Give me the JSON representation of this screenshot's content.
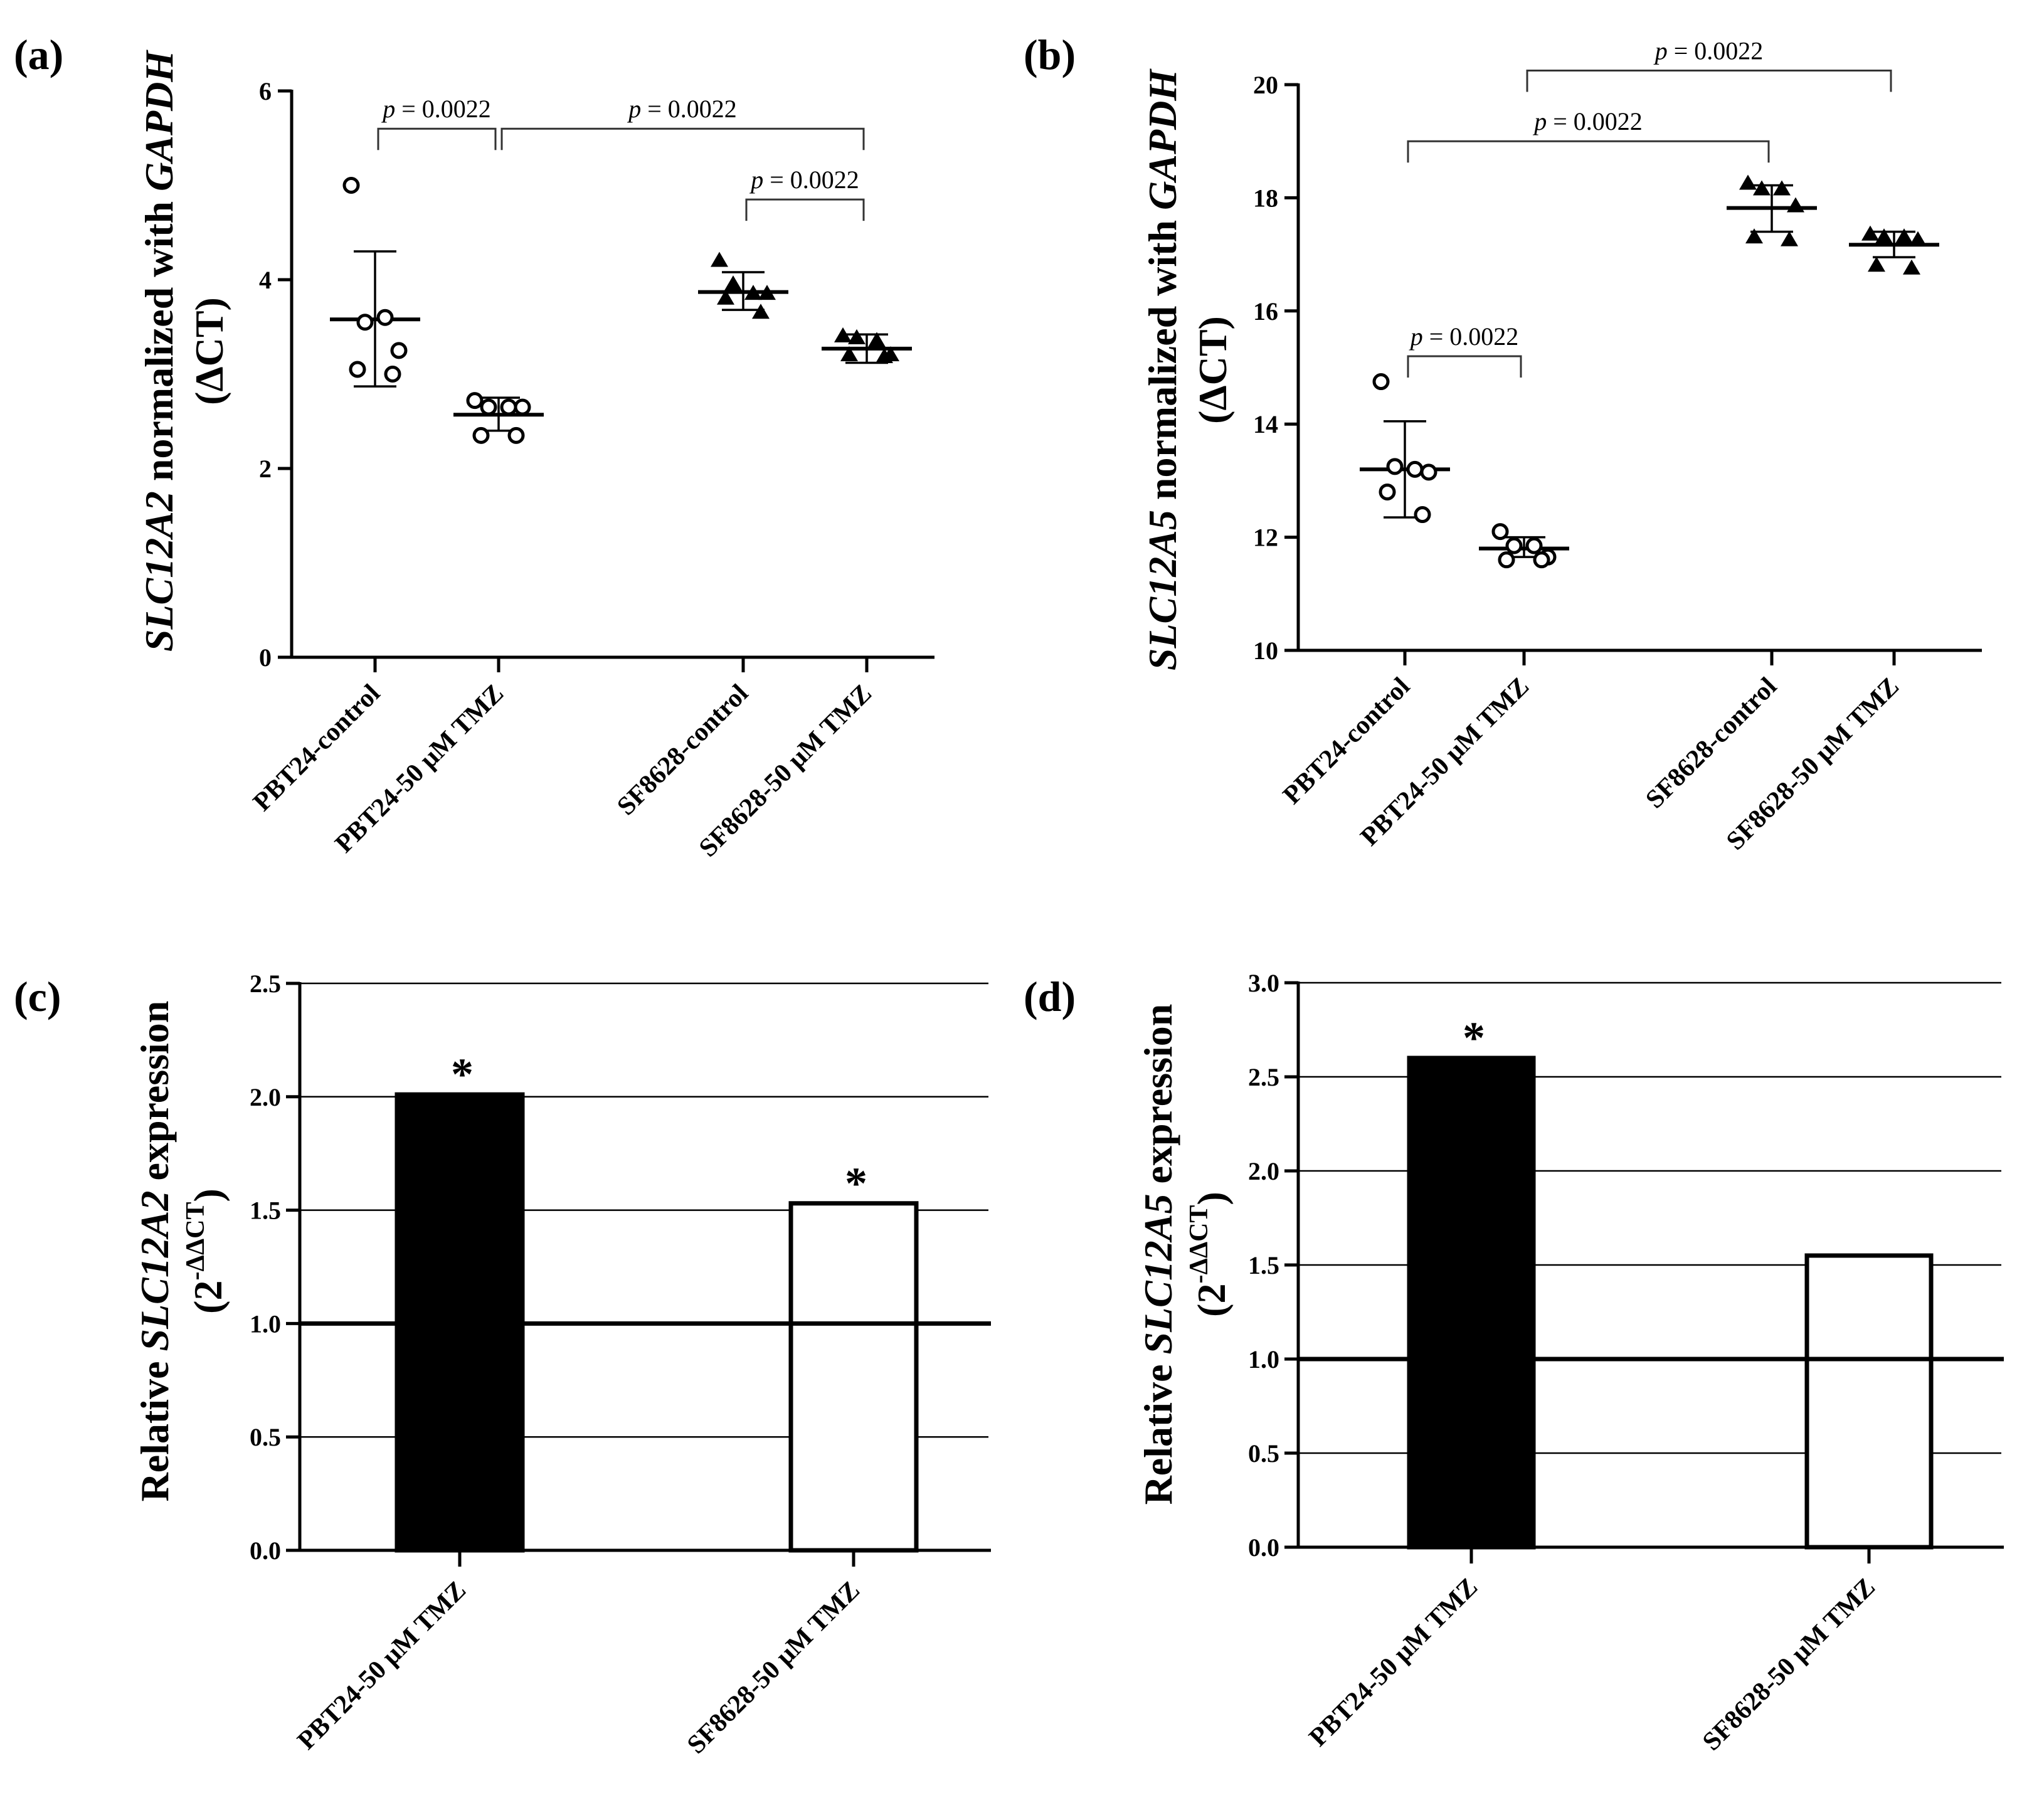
{
  "panels": [
    {
      "id": "a",
      "label": "(a)",
      "ylabel_gene": "SLC12A2",
      "ylabel_rest": " normalized with ",
      "ylabel_norm": "GAPDH",
      "ylabel_line2": "(ΔCT)"
    },
    {
      "id": "b",
      "label": "(b)",
      "ylabel_gene": "SLC12A5",
      "ylabel_rest": " normalized with ",
      "ylabel_norm": "GAPDH",
      "ylabel_line2": "(ΔCT)"
    },
    {
      "id": "c",
      "label": "(c)",
      "ylabel_pre": "Relative ",
      "ylabel_gene": "SLC12A2",
      "ylabel_post": " expression",
      "ylabel_line2_base": "(2",
      "ylabel_line2_sup": "-ΔΔCT",
      "ylabel_line2_end": ")"
    },
    {
      "id": "d",
      "label": "(d)",
      "ylabel_pre": "Relative ",
      "ylabel_gene": "SLC12A5",
      "ylabel_post": " expression",
      "ylabel_line2_base": "(2",
      "ylabel_line2_sup": "-ΔΔCT",
      "ylabel_line2_end": ")"
    }
  ],
  "chart_data": [
    {
      "panel": "a",
      "type": "scatter",
      "ylabel": "SLC12A2 normalized with GAPDH (ΔCT)",
      "ylim": [
        0,
        6
      ],
      "yticks": [
        0,
        2,
        4,
        6
      ],
      "categories": [
        "PBT24-control",
        "PBT24-50 μM TMZ",
        "SF8628-control",
        "SF8628-50 μM TMZ"
      ],
      "series": [
        {
          "name": "PBT24-control",
          "marker": "open-circle",
          "points": [
            5.0,
            3.55,
            3.6,
            3.25,
            3.05,
            3.0
          ],
          "mean": 3.58,
          "sd_low": 2.87,
          "sd_high": 4.3
        },
        {
          "name": "PBT24-50 μM TMZ",
          "marker": "open-circle",
          "points": [
            2.72,
            2.65,
            2.65,
            2.65,
            2.35,
            2.35
          ],
          "mean": 2.57,
          "sd_low": 2.4,
          "sd_high": 2.75
        },
        {
          "name": "SF8628-control",
          "marker": "filled-triangle",
          "points": [
            4.2,
            3.95,
            3.85,
            3.85,
            3.8,
            3.65
          ],
          "mean": 3.87,
          "sd_low": 3.68,
          "sd_high": 4.08
        },
        {
          "name": "SF8628-50 μM TMZ",
          "marker": "filled-triangle",
          "points": [
            3.4,
            3.38,
            3.35,
            3.2,
            3.2,
            3.18
          ],
          "mean": 3.27,
          "sd_low": 3.12,
          "sd_high": 3.42
        }
      ],
      "comparisons": [
        {
          "from": 0,
          "to": 1,
          "level": 5.6,
          "text": "p = 0.0022"
        },
        {
          "from": 1,
          "to": 3,
          "level": 5.6,
          "text": "p = 0.0022"
        },
        {
          "from": 2,
          "to": 3,
          "level": 4.85,
          "text": "p = 0.0022"
        }
      ]
    },
    {
      "panel": "b",
      "type": "scatter",
      "ylabel": "SLC12A5 normalized with GAPDH (ΔCT)",
      "ylim": [
        10,
        20
      ],
      "yticks": [
        10,
        12,
        14,
        16,
        18,
        20
      ],
      "categories": [
        "PBT24-control",
        "PBT24-50 μM TMZ",
        "SF8628-control",
        "SF8628-50 μM TMZ"
      ],
      "series": [
        {
          "name": "PBT24-control",
          "marker": "open-circle",
          "points": [
            14.75,
            13.25,
            13.2,
            13.15,
            12.8,
            12.4
          ],
          "mean": 13.2,
          "sd_low": 12.35,
          "sd_high": 14.05
        },
        {
          "name": "PBT24-50 μM TMZ",
          "marker": "open-circle",
          "points": [
            12.1,
            11.85,
            11.85,
            11.65,
            11.6,
            11.6
          ],
          "mean": 11.8,
          "sd_low": 11.65,
          "sd_high": 12.0
        },
        {
          "name": "SF8628-control",
          "marker": "filled-triangle",
          "points": [
            18.25,
            18.15,
            18.15,
            17.85,
            17.3,
            17.25
          ],
          "mean": 17.82,
          "sd_low": 17.4,
          "sd_high": 18.22
        },
        {
          "name": "SF8628-50 μM TMZ",
          "marker": "filled-triangle",
          "points": [
            17.35,
            17.3,
            17.3,
            17.25,
            16.8,
            16.75
          ],
          "mean": 17.17,
          "sd_low": 16.95,
          "sd_high": 17.4
        }
      ],
      "comparisons": [
        {
          "from": 0,
          "to": 1,
          "level": 15.2,
          "text": "p = 0.0022"
        },
        {
          "from": 0,
          "to": 2,
          "level": 19.0,
          "text": "p = 0.0022"
        },
        {
          "from": 1,
          "to": 3,
          "level": 20.25,
          "text": "p = 0.0022"
        }
      ]
    },
    {
      "panel": "c",
      "type": "bar",
      "ylabel": "Relative SLC12A2 expression (2-ΔΔCT)",
      "ylim": [
        0,
        2.5
      ],
      "yticks": [
        "0.0",
        "0.5",
        "1.0",
        "1.5",
        "2.0",
        "2.5"
      ],
      "reference_line": 1.0,
      "categories": [
        "PBT24-50 μM TMZ",
        "SF8628-50 μM TMZ"
      ],
      "values": [
        2.01,
        1.53
      ],
      "fills": [
        "#000000",
        "#ffffff"
      ],
      "annotations": [
        "*",
        "*"
      ]
    },
    {
      "panel": "d",
      "type": "bar",
      "ylabel": "Relative SLC12A5 expression (2-ΔΔCT)",
      "ylim": [
        0,
        3.0
      ],
      "yticks": [
        "0.0",
        "0.5",
        "1.0",
        "1.5",
        "2.0",
        "2.5",
        "3.0"
      ],
      "reference_line": 1.0,
      "categories": [
        "PBT24-50 μM TMZ",
        "SF8628-50 μM TMZ"
      ],
      "values": [
        2.6,
        1.55
      ],
      "fills": [
        "#000000",
        "#ffffff"
      ],
      "annotations": [
        "*",
        ""
      ]
    }
  ]
}
